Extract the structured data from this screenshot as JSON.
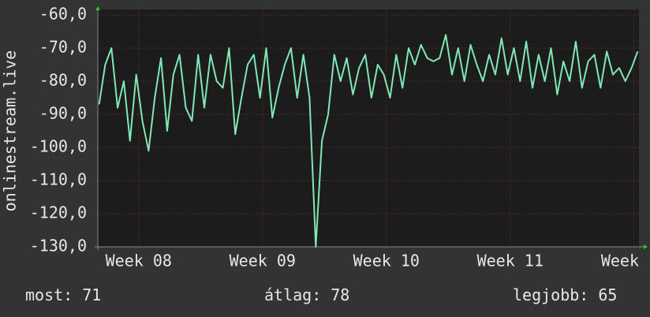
{
  "chart_data": {
    "type": "line",
    "y_label": "onlinestream.live",
    "color": "#7fe8b4",
    "grid": true,
    "xlim": [
      7.67,
      12.04
    ],
    "xticks": [
      {
        "value": 8,
        "label": "Week 08"
      },
      {
        "value": 9,
        "label": "Week 09"
      },
      {
        "value": 10,
        "label": "Week 10"
      },
      {
        "value": 11,
        "label": "Week 11"
      },
      {
        "value": 12,
        "label": "Week"
      }
    ],
    "ylim": [
      -130,
      -60
    ],
    "yticks": [
      {
        "value": -60,
        "label": "-60,0"
      },
      {
        "value": -70,
        "label": "-70,0"
      },
      {
        "value": -80,
        "label": "-80,0"
      },
      {
        "value": -90,
        "label": "-90,0"
      },
      {
        "value": -100,
        "label": "-100,0"
      },
      {
        "value": -110,
        "label": "-110,0"
      },
      {
        "value": -120,
        "label": "-120,0"
      },
      {
        "value": -130,
        "label": "-130,0"
      }
    ],
    "x": [
      7.68,
      7.73,
      7.78,
      7.83,
      7.88,
      7.93,
      7.98,
      8.03,
      8.08,
      8.13,
      8.18,
      8.23,
      8.28,
      8.33,
      8.38,
      8.43,
      8.48,
      8.53,
      8.58,
      8.63,
      8.68,
      8.73,
      8.78,
      8.83,
      8.88,
      8.93,
      8.98,
      9.03,
      9.08,
      9.13,
      9.18,
      9.23,
      9.28,
      9.33,
      9.38,
      9.43,
      9.48,
      9.53,
      9.58,
      9.63,
      9.68,
      9.73,
      9.78,
      9.83,
      9.88,
      9.93,
      9.98,
      10.03,
      10.08,
      10.13,
      10.18,
      10.23,
      10.28,
      10.33,
      10.38,
      10.43,
      10.48,
      10.53,
      10.58,
      10.63,
      10.68,
      10.73,
      10.78,
      10.83,
      10.88,
      10.93,
      10.98,
      11.03,
      11.08,
      11.13,
      11.18,
      11.23,
      11.28,
      11.33,
      11.38,
      11.43,
      11.48,
      11.53,
      11.58,
      11.63,
      11.68,
      11.73,
      11.78,
      11.83,
      11.88,
      11.93,
      11.98,
      12.03
    ],
    "values": [
      -87,
      -75,
      -70,
      -88,
      -80,
      -98,
      -78,
      -92,
      -101,
      -85,
      -73,
      -95,
      -78,
      -72,
      -88,
      -92,
      -72,
      -88,
      -72,
      -80,
      -82,
      -70,
      -96,
      -85,
      -75,
      -72,
      -85,
      -70,
      -91,
      -82,
      -75,
      -70,
      -85,
      -72,
      -85,
      -130,
      -98,
      -90,
      -72,
      -80,
      -73,
      -84,
      -76,
      -72,
      -85,
      -75,
      -78,
      -85,
      -72,
      -82,
      -70,
      -75,
      -69,
      -73,
      -74,
      -73,
      -66,
      -78,
      -70,
      -80,
      -69,
      -75,
      -80,
      -72,
      -78,
      -67,
      -78,
      -70,
      -80,
      -68,
      -82,
      -72,
      -80,
      -70,
      -84,
      -74,
      -80,
      -68,
      -82,
      -74,
      -72,
      -82,
      -71,
      -78,
      -76,
      -80,
      -76,
      -71
    ],
    "stats": [
      {
        "label": "most:",
        "value": 71
      },
      {
        "label": "átlag:",
        "value": 78
      },
      {
        "label": "legjobb:",
        "value": 65
      }
    ]
  }
}
